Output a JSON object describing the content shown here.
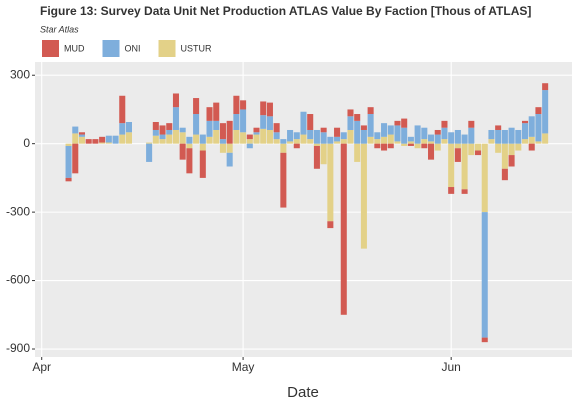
{
  "chart_data": {
    "type": "bar",
    "stacked": true,
    "title": "Figure 13: Survey Data Unit Net Production ATLAS Value By Faction [Thous of ATLAS]",
    "subtitle": "Star Atlas",
    "x_label": "Date",
    "legend": "top",
    "grid": true,
    "x": [
      4,
      5,
      6,
      7,
      8,
      9,
      10,
      11,
      12,
      13,
      16,
      17,
      18,
      19,
      20,
      21,
      22,
      23,
      24,
      25,
      26,
      27,
      28,
      29,
      30,
      31,
      32,
      33,
      34,
      35,
      36,
      37,
      38,
      39,
      40,
      41,
      42,
      43,
      44,
      45,
      46,
      47,
      48,
      49,
      50,
      51,
      52,
      53,
      54,
      55,
      56,
      57,
      58,
      59,
      60,
      61,
      62,
      63,
      64,
      65,
      66,
      67,
      68,
      69,
      70,
      71,
      72,
      73,
      74,
      75
    ],
    "xlim": [
      -1,
      79
    ],
    "xticks": [
      {
        "value": 0,
        "label": "Apr"
      },
      {
        "value": 30,
        "label": "May"
      },
      {
        "value": 61,
        "label": "Jun"
      }
    ],
    "ylim": [
      -935,
      358
    ],
    "yticks": [
      300,
      0,
      -300,
      -600,
      -900
    ],
    "series": [
      {
        "name": "MUD",
        "color": "#d25a52",
        "values": [
          -15,
          -130,
          10,
          20,
          20,
          25,
          null,
          null,
          120,
          null,
          null,
          35,
          40,
          30,
          60,
          -70,
          -110,
          70,
          -120,
          60,
          80,
          70,
          100,
          80,
          40,
          20,
          20,
          60,
          60,
          40,
          -240,
          null,
          -20,
          null,
          70,
          -100,
          20,
          -30,
          40,
          -750,
          30,
          30,
          20,
          30,
          -20,
          -30,
          -20,
          20,
          40,
          -10,
          null,
          -20,
          -70,
          20,
          30,
          -30,
          -60,
          -20,
          30,
          -20,
          -20,
          null,
          20,
          -50,
          -50,
          null,
          10,
          -30,
          30,
          30
        ]
      },
      {
        "name": "ONI",
        "color": "#7eaedc",
        "values": [
          -140,
          30,
          10,
          null,
          null,
          null,
          30,
          35,
          50,
          45,
          -80,
          25,
          20,
          20,
          100,
          20,
          30,
          90,
          40,
          70,
          40,
          20,
          -60,
          70,
          100,
          -20,
          10,
          60,
          60,
          30,
          20,
          50,
          30,
          100,
          40,
          60,
          50,
          30,
          20,
          30,
          60,
          100,
          60,
          100,
          30,
          60,
          40,
          70,
          70,
          20,
          80,
          50,
          30,
          40,
          50,
          50,
          60,
          40,
          70,
          null,
          -550,
          40,
          60,
          60,
          70,
          60,
          70,
          90,
          120,
          190
        ]
      },
      {
        "name": "USTUR",
        "color": "#e3d188",
        "values": [
          -10,
          45,
          30,
          null,
          null,
          5,
          5,
          null,
          40,
          50,
          5,
          35,
          20,
          40,
          60,
          50,
          -20,
          40,
          -30,
          30,
          60,
          -40,
          -40,
          60,
          50,
          20,
          40,
          65,
          60,
          20,
          -40,
          10,
          20,
          40,
          20,
          -10,
          -90,
          -340,
          10,
          20,
          60,
          -80,
          -460,
          30,
          20,
          30,
          40,
          10,
          -10,
          10,
          -20,
          20,
          10,
          -30,
          20,
          -190,
          -20,
          -200,
          -50,
          -30,
          -300,
          20,
          -40,
          -110,
          -50,
          -30,
          20,
          30,
          10,
          45
        ]
      }
    ]
  }
}
